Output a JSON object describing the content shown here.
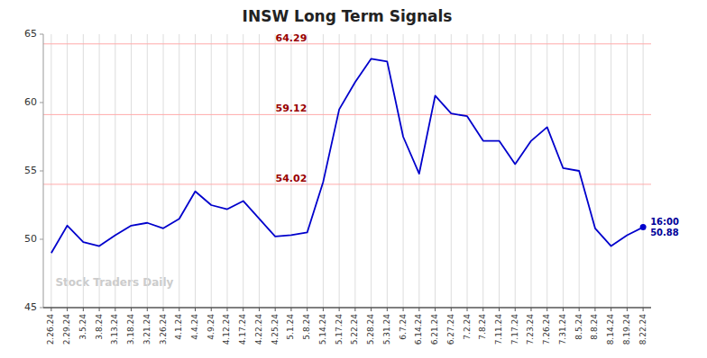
{
  "chart_data": {
    "type": "line",
    "title": "INSW Long Term Signals",
    "watermark": "Stock Traders Daily",
    "categories": [
      "2.26.24",
      "2.29.24",
      "3.5.24",
      "3.8.24",
      "3.13.24",
      "3.18.24",
      "3.21.24",
      "3.26.24",
      "4.1.24",
      "4.4.24",
      "4.9.24",
      "4.12.24",
      "4.17.24",
      "4.22.24",
      "4.25.24",
      "5.1.24",
      "5.8.24",
      "5.14.24",
      "5.17.24",
      "5.22.24",
      "5.28.24",
      "5.31.24",
      "6.7.24",
      "6.14.24",
      "6.21.24",
      "6.27.24",
      "7.2.24",
      "7.8.24",
      "7.11.24",
      "7.17.24",
      "7.23.24",
      "7.26.24",
      "7.31.24",
      "8.5.24",
      "8.8.24",
      "8.14.24",
      "8.19.24",
      "8.22.24"
    ],
    "values": [
      49.0,
      51.0,
      49.8,
      49.5,
      50.3,
      51.0,
      51.2,
      50.8,
      51.5,
      53.5,
      52.5,
      52.2,
      52.8,
      51.5,
      50.2,
      50.3,
      50.5,
      54.2,
      59.5,
      61.5,
      63.2,
      63.0,
      57.5,
      54.8,
      60.5,
      59.2,
      59.0,
      57.2,
      57.2,
      55.5,
      57.2,
      58.2,
      55.2,
      55.0,
      50.8,
      49.5,
      50.3,
      50.88
    ],
    "color": "#0000CC",
    "hlines": [
      54.02,
      59.12,
      64.29
    ],
    "annotation": "16:00\n50.88",
    "ylim": [
      45,
      65
    ],
    "yticks": [
      45,
      50,
      55,
      60,
      65
    ],
    "grid": true
  }
}
